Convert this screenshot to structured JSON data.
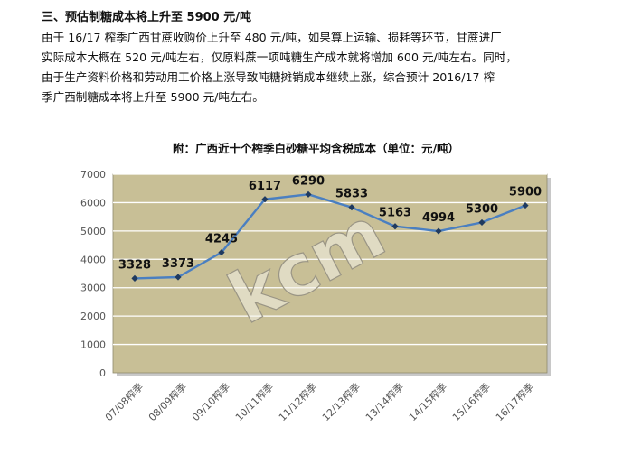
{
  "article": {
    "heading": "三、预估制糖成本将上升至 5900 元/吨",
    "lines": [
      "由于 16/17 榨季广西甘蔗收购价上升至 480 元/吨，如果算上运输、损耗等环节，甘蔗进厂",
      "实际成本大概在 520 元/吨左右，仅原料蔗一项吨糖生产成本就将增加 600 元/吨左右。同时，",
      "由于生产资料价格和劳动用工价格上涨导致吨糖摊销成本继续上涨，综合预计 2016/17 榨",
      "季广西制糖成本将上升至 5900 元/吨左右。"
    ]
  },
  "chart_data": {
    "type": "line",
    "title": "附：广西近十个榨季白砂糖平均含税成本（单位：元/吨）",
    "categories": [
      "07/08榨季",
      "08/09榨季",
      "09/10榨季",
      "10/11榨季",
      "11/12榨季",
      "12/13榨季",
      "13/14榨季",
      "14/15榨季",
      "15/16榨季",
      "16/17榨季"
    ],
    "values": [
      3328,
      3373,
      4245,
      6117,
      6290,
      5833,
      5163,
      4994,
      5300,
      5900
    ],
    "ylim": [
      0,
      7000
    ],
    "yticks": [
      0,
      1000,
      2000,
      3000,
      4000,
      5000,
      6000,
      7000
    ],
    "grid": true,
    "data_labels": true,
    "colors": {
      "plot_background": "#c8bf96",
      "line": "#4a7fc1",
      "marker": "#1f3a5f",
      "grid": "#ffffff"
    },
    "watermark": "kcm"
  }
}
